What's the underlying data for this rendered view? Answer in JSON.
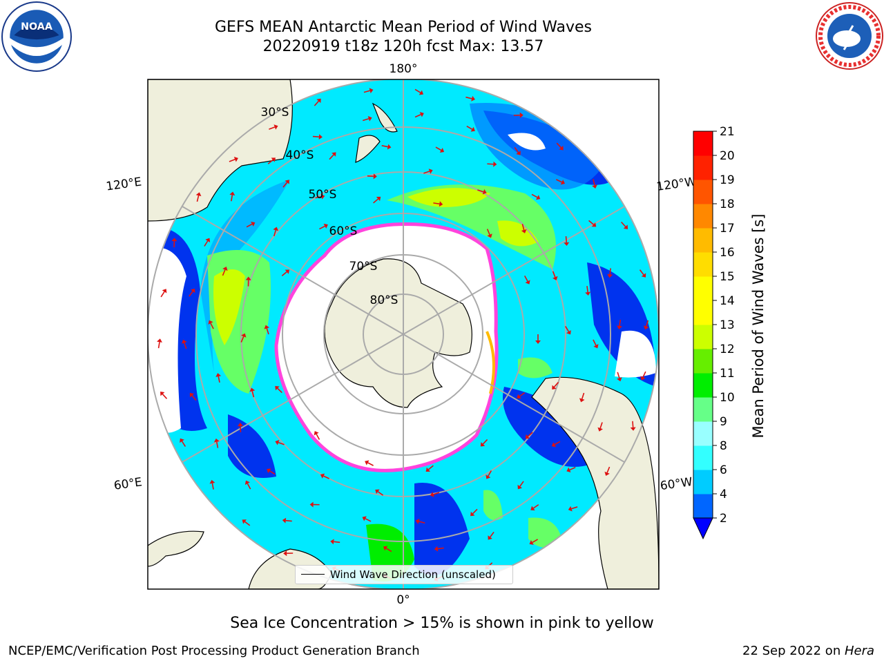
{
  "title": {
    "line1": "GEFS MEAN Antarctic Mean Period of Wind Waves",
    "line2": "20220919 t18z 120h fcst   Max: 13.57"
  },
  "map": {
    "projection": "south-polar-stereographic",
    "lon_labels": [
      "180°",
      "120°E",
      "120°W",
      "60°E",
      "60°W",
      "0°"
    ],
    "lat_labels": [
      "30°S",
      "40°S",
      "50°S",
      "60°S",
      "70°S",
      "80°S"
    ],
    "land_color": "#efefdc",
    "ice_color": "#ff44dd",
    "arrow_color": "#dd1111"
  },
  "colorbar": {
    "label": "Mean Period of Wind Waves [s]",
    "ticks": [
      "2",
      "4",
      "6",
      "8",
      "9",
      "10",
      "11",
      "12",
      "13",
      "14",
      "15",
      "16",
      "17",
      "18",
      "19",
      "20",
      "21"
    ],
    "colors": [
      "#0066ff",
      "#00ccff",
      "#33ffff",
      "#99ffff",
      "#66ff88",
      "#00ee00",
      "#66ee00",
      "#ccff00",
      "#ffff00",
      "#ffff00",
      "#ffdd00",
      "#ffbb00",
      "#ff8800",
      "#ff5500",
      "#ff2200",
      "#ff0000"
    ],
    "under_color": "#0000ff"
  },
  "legend": {
    "label": "Wind Wave Direction (unscaled)"
  },
  "note": "Sea Ice Concentration > 15% is shown in pink to yellow",
  "footer": {
    "left": "NCEP/EMC/Verification Post Processing Product Generation Branch",
    "date": "22 Sep 2022 on ",
    "machine": "Hera"
  },
  "logos": {
    "left": "noaa-logo",
    "right": "nws-logo"
  }
}
